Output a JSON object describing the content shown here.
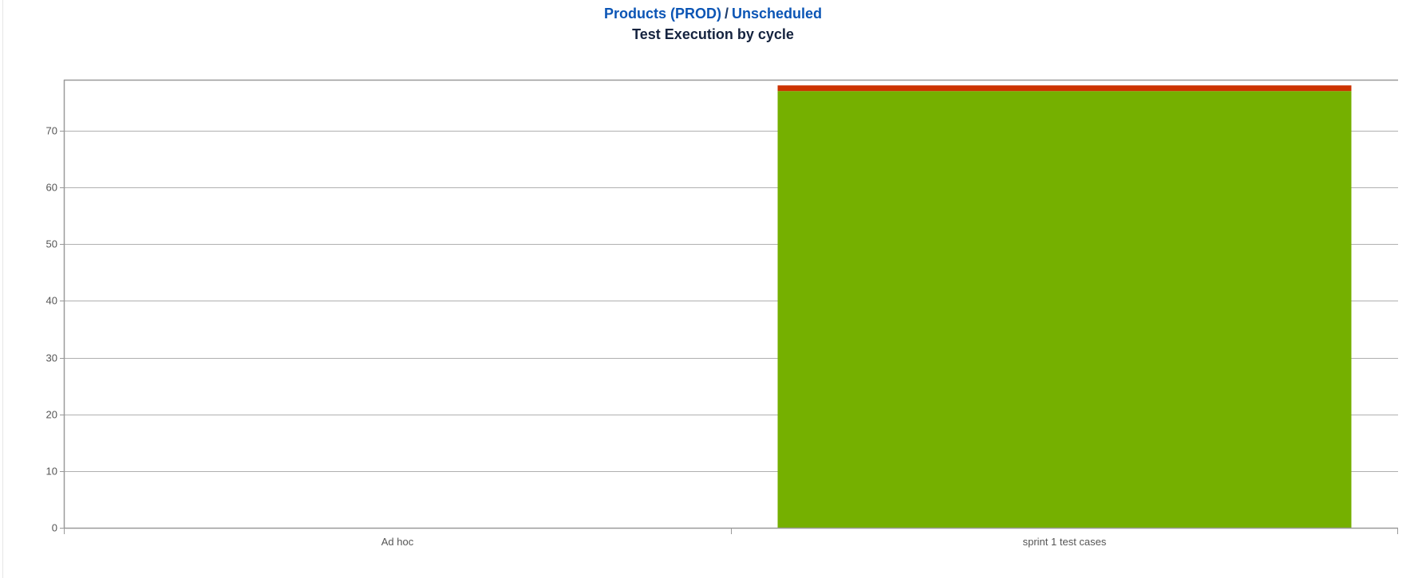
{
  "header": {
    "breadcrumb_project": "Products (PROD)",
    "breadcrumb_separator": "/",
    "breadcrumb_release": "Unscheduled",
    "title": "Test Execution by cycle"
  },
  "chart_data": {
    "type": "bar",
    "stacked": true,
    "title": "Test Execution by cycle",
    "xlabel": "",
    "ylabel": "",
    "categories": [
      "Ad hoc",
      "sprint 1 test cases"
    ],
    "series": [
      {
        "values": [
          0,
          77
        ],
        "color": "#75b000"
      },
      {
        "values": [
          0,
          1
        ],
        "color": "#cc3300"
      }
    ],
    "ylim": [
      0,
      79
    ],
    "yticks": [
      0,
      10,
      20,
      30,
      40,
      50,
      60,
      70
    ],
    "grid": true,
    "legend": "none"
  }
}
